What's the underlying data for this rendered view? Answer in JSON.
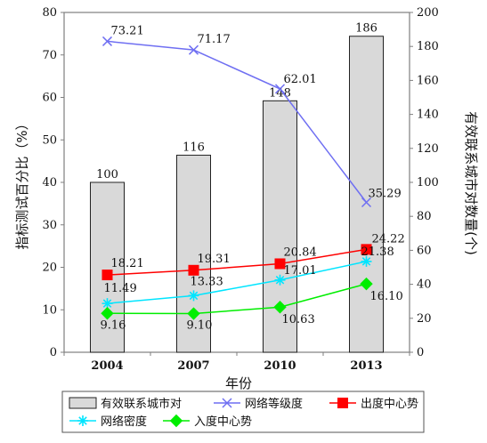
{
  "chart_data": {
    "type": "bar+line",
    "categories": [
      "2004",
      "2007",
      "2010",
      "2013"
    ],
    "xlabel": "年份",
    "ylabel_left": "指标测试百分比（%）",
    "ylabel_right": "有效联系城市对数量(个)",
    "ylim_left": [
      0,
      80
    ],
    "yticks_left": [
      "0",
      "10",
      "20",
      "30",
      "40",
      "50",
      "60",
      "70",
      "80"
    ],
    "ylim_right": [
      0,
      200
    ],
    "yticks_right": [
      "0",
      "20",
      "40",
      "60",
      "80",
      "100",
      "120",
      "140",
      "160",
      "180",
      "200"
    ],
    "grid": false,
    "legend_position": "bottom",
    "bars": {
      "name": "有效联系城市对",
      "axis": "right",
      "values": [
        100,
        116,
        148,
        186
      ],
      "labels": [
        "100",
        "116",
        "148",
        "186"
      ],
      "color": "#d9d9d9"
    },
    "series": [
      {
        "name": "网络等级度",
        "axis": "left",
        "values": [
          73.21,
          71.17,
          62.01,
          35.29
        ],
        "labels": [
          "73.21",
          "71.17",
          "62.01",
          "35.29"
        ],
        "color": "#6f6ff2",
        "marker": "x"
      },
      {
        "name": "出度中心势",
        "axis": "left",
        "values": [
          18.21,
          19.31,
          20.84,
          24.22
        ],
        "labels": [
          "18.21",
          "19.31",
          "20.84",
          "24.22"
        ],
        "color": "#ff0000",
        "marker": "square"
      },
      {
        "name": "网络密度",
        "axis": "left",
        "values": [
          11.49,
          13.33,
          17.01,
          21.38
        ],
        "labels": [
          "11.49",
          "13.33",
          "17.01",
          "21.38"
        ],
        "color": "#00e5ff",
        "marker": "star"
      },
      {
        "name": "入度中心势",
        "axis": "left",
        "values": [
          9.16,
          9.1,
          10.63,
          16.1
        ],
        "labels": [
          "9.16",
          "9.10",
          "10.63",
          "16.10"
        ],
        "color": "#00ee00",
        "marker": "diamond"
      }
    ],
    "legend": [
      "有效联系城市对",
      "网络等级度",
      "出度中心势",
      "网络密度",
      "入度中心势"
    ]
  }
}
